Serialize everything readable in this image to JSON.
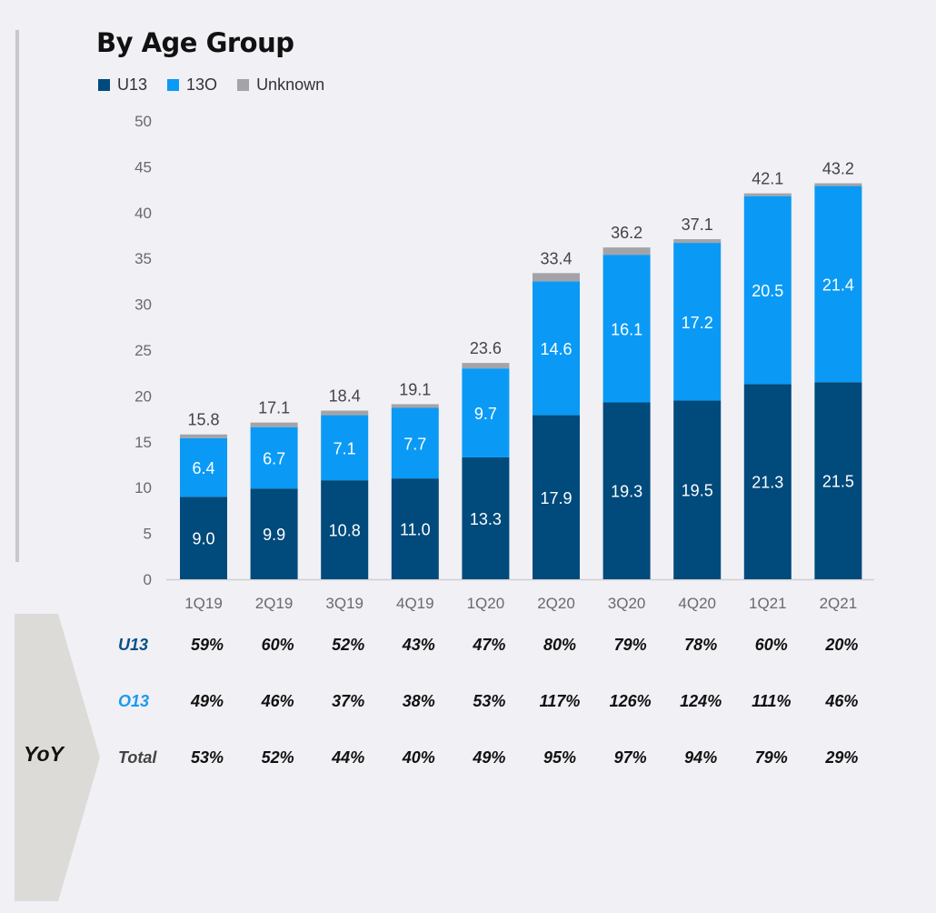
{
  "chart_data": {
    "type": "bar",
    "stacked": true,
    "title": "By Age Group",
    "categories": [
      "1Q19",
      "2Q19",
      "3Q19",
      "4Q19",
      "1Q20",
      "2Q20",
      "3Q20",
      "4Q20",
      "1Q21",
      "2Q21"
    ],
    "series": [
      {
        "name": "U13",
        "color": "#004a7c",
        "values": [
          9.0,
          9.9,
          10.8,
          11.0,
          13.3,
          17.9,
          19.3,
          19.5,
          21.3,
          21.5
        ]
      },
      {
        "name": "13O",
        "color": "#0a9af5",
        "values": [
          6.4,
          6.7,
          7.1,
          7.7,
          9.7,
          14.6,
          16.1,
          17.2,
          20.5,
          21.4
        ]
      },
      {
        "name": "Unknown",
        "color": "#a4a4a8",
        "values": [
          0.4,
          0.5,
          0.5,
          0.4,
          0.6,
          0.9,
          0.8,
          0.4,
          0.3,
          0.3
        ]
      }
    ],
    "value_labels": {
      "U13": [
        "9.0",
        "9.9",
        "10.8",
        "11.0",
        "13.3",
        "17.9",
        "19.3",
        "19.5",
        "21.3",
        "21.5"
      ],
      "13O": [
        "6.4",
        "6.7",
        "7.1",
        "7.7",
        "9.7",
        "14.6",
        "16.1",
        "17.2",
        "20.5",
        "21.4"
      ]
    },
    "totals": [
      "15.8",
      "17.1",
      "18.4",
      "19.1",
      "23.6",
      "33.4",
      "36.2",
      "37.1",
      "42.1",
      "43.2"
    ],
    "ylim": [
      0,
      50
    ],
    "yticks": [
      0,
      5,
      10,
      15,
      20,
      25,
      30,
      35,
      40,
      45,
      50
    ],
    "grid": false,
    "legend_position": "top-left"
  },
  "legend": {
    "items": [
      {
        "label": "U13",
        "color": "#004a7c"
      },
      {
        "label": "13O",
        "color": "#0a9af5"
      },
      {
        "label": "Unknown",
        "color": "#a4a4a8"
      }
    ]
  },
  "yoy": {
    "label": "YoY",
    "rows": [
      {
        "label": "U13",
        "color": "#0b4f86",
        "values": [
          "59%",
          "60%",
          "52%",
          "43%",
          "47%",
          "80%",
          "79%",
          "78%",
          "60%",
          "20%"
        ]
      },
      {
        "label": "O13",
        "color": "#1a9af0",
        "values": [
          "49%",
          "46%",
          "37%",
          "38%",
          "53%",
          "117%",
          "126%",
          "124%",
          "111%",
          "46%"
        ]
      },
      {
        "label": "Total",
        "color": "#444444",
        "values": [
          "53%",
          "52%",
          "44%",
          "40%",
          "49%",
          "95%",
          "97%",
          "94%",
          "79%",
          "29%"
        ]
      }
    ]
  }
}
